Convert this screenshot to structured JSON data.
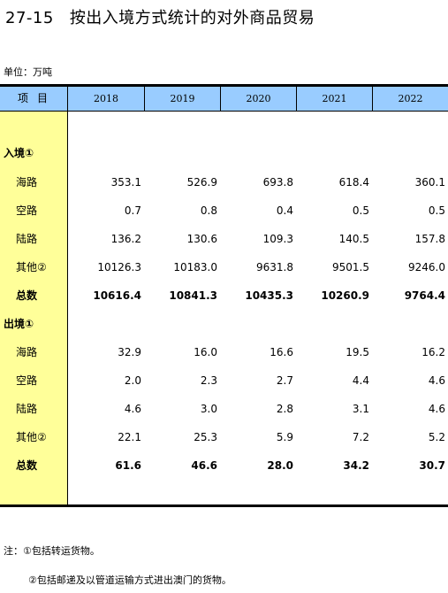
{
  "title": {
    "number": "27-15",
    "text": "按出入境方式统计的对外商品贸易"
  },
  "unit": "单位：万吨",
  "header": {
    "stub": "项目",
    "years": [
      "2018",
      "2019",
      "2020",
      "2021",
      "2022"
    ]
  },
  "sections": [
    {
      "label": "入境①",
      "rows": [
        {
          "label": "海路",
          "values": [
            "353.1",
            "526.9",
            "693.8",
            "618.4",
            "360.1"
          ]
        },
        {
          "label": "空路",
          "values": [
            "0.7",
            "0.8",
            "0.4",
            "0.5",
            "0.5"
          ]
        },
        {
          "label": "陆路",
          "values": [
            "136.2",
            "130.6",
            "109.3",
            "140.5",
            "157.8"
          ]
        },
        {
          "label": "其他②",
          "values": [
            "10126.3",
            "10183.0",
            "9631.8",
            "9501.5",
            "9246.0"
          ]
        }
      ],
      "total": {
        "label": "总数",
        "values": [
          "10616.4",
          "10841.3",
          "10435.3",
          "10260.9",
          "9764.4"
        ]
      }
    },
    {
      "label": "出境①",
      "rows": [
        {
          "label": "海路",
          "values": [
            "32.9",
            "16.0",
            "16.6",
            "19.5",
            "16.2"
          ]
        },
        {
          "label": "空路",
          "values": [
            "2.0",
            "2.3",
            "2.7",
            "4.4",
            "4.6"
          ]
        },
        {
          "label": "陆路",
          "values": [
            "4.6",
            "3.0",
            "2.8",
            "3.1",
            "4.6"
          ]
        },
        {
          "label": "其他②",
          "values": [
            "22.1",
            "25.3",
            "5.9",
            "7.2",
            "5.2"
          ]
        }
      ],
      "total": {
        "label": "总数",
        "values": [
          "61.6",
          "46.6",
          "28.0",
          "34.2",
          "30.7"
        ]
      }
    }
  ],
  "notes": [
    "注：①包括转运货物。",
    "②包括邮递及以管道运输方式进出澳门的货物。"
  ],
  "colors": {
    "header_bg": "#99ccff",
    "stub_bg": "#ffff99",
    "rule": "#000000"
  }
}
